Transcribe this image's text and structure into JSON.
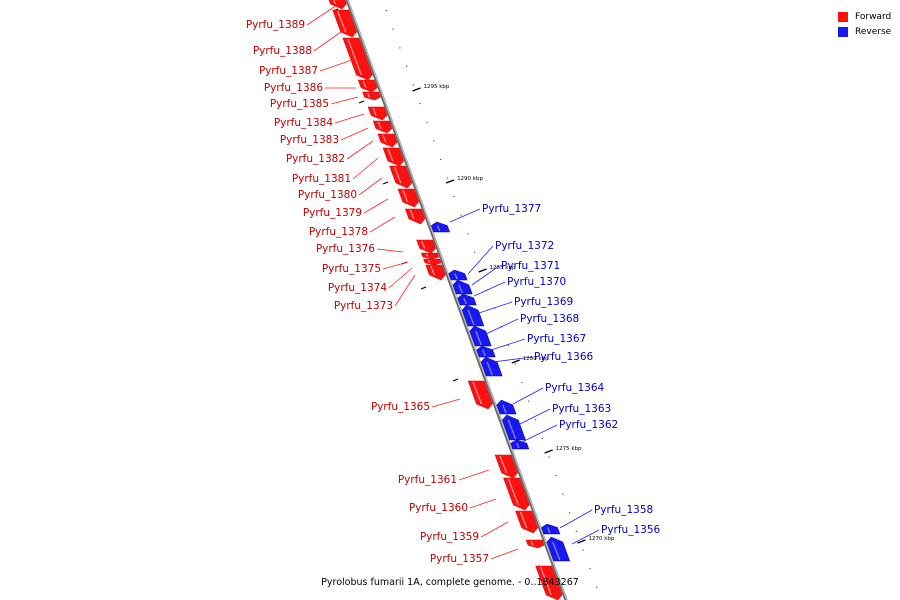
{
  "caption": "Pyrolobus fumarii 1A, complete genome. - 0..1843267",
  "legend": [
    {
      "label": "Forward",
      "color": "#ff1010"
    },
    {
      "label": "Reverse",
      "color": "#1818f0"
    }
  ],
  "colors": {
    "forward": "#ff1010",
    "reverse": "#1818f0",
    "backbone": "#808080"
  },
  "scale_labels": [
    "1295 kbp",
    "1290 kbp",
    "1285 kbp",
    "1280 kbp",
    "1275 kbp",
    "1270 kbp"
  ],
  "genes_forward": [
    "Pyrfu_1389",
    "Pyrfu_1388",
    "Pyrfu_1387",
    "Pyrfu_1386",
    "Pyrfu_1385",
    "Pyrfu_1384",
    "Pyrfu_1383",
    "Pyrfu_1382",
    "Pyrfu_1381",
    "Pyrfu_1380",
    "Pyrfu_1379",
    "Pyrfu_1378",
    "Pyrfu_1376",
    "Pyrfu_1375",
    "Pyrfu_1374",
    "Pyrfu_1373",
    "Pyrfu_1365",
    "Pyrfu_1361",
    "Pyrfu_1360",
    "Pyrfu_1359",
    "Pyrfu_1357"
  ],
  "genes_reverse": [
    "Pyrfu_1377",
    "Pyrfu_1372",
    "Pyrfu_1371",
    "Pyrfu_1370",
    "Pyrfu_1369",
    "Pyrfu_1368",
    "Pyrfu_1367",
    "Pyrfu_1366",
    "Pyrfu_1364",
    "Pyrfu_1363",
    "Pyrfu_1362",
    "Pyrfu_1358",
    "Pyrfu_1356"
  ]
}
